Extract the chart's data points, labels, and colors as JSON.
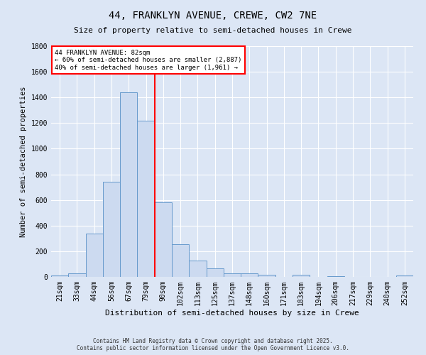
{
  "title_line1": "44, FRANKLYN AVENUE, CREWE, CW2 7NE",
  "title_line2": "Size of property relative to semi-detached houses in Crewe",
  "xlabel": "Distribution of semi-detached houses by size in Crewe",
  "ylabel": "Number of semi-detached properties",
  "bin_labels": [
    "21sqm",
    "33sqm",
    "44sqm",
    "56sqm",
    "67sqm",
    "79sqm",
    "90sqm",
    "102sqm",
    "113sqm",
    "125sqm",
    "137sqm",
    "148sqm",
    "160sqm",
    "171sqm",
    "183sqm",
    "194sqm",
    "206sqm",
    "217sqm",
    "229sqm",
    "240sqm",
    "252sqm"
  ],
  "bin_values": [
    10,
    25,
    340,
    740,
    1440,
    1220,
    580,
    255,
    125,
    65,
    30,
    25,
    15,
    0,
    15,
    0,
    5,
    0,
    0,
    0,
    10
  ],
  "bar_color": "#ccdaf0",
  "bar_edge_color": "#6699cc",
  "vline_color": "red",
  "vline_position": 5.5,
  "annotation_text": "44 FRANKLYN AVENUE: 82sqm\n← 60% of semi-detached houses are smaller (2,887)\n40% of semi-detached houses are larger (1,961) →",
  "ylim": [
    0,
    1800
  ],
  "yticks": [
    0,
    200,
    400,
    600,
    800,
    1000,
    1200,
    1400,
    1600,
    1800
  ],
  "footnote_line1": "Contains HM Land Registry data © Crown copyright and database right 2025.",
  "footnote_line2": "Contains public sector information licensed under the Open Government Licence v3.0.",
  "background_color": "#dce6f5",
  "plot_background_color": "#dce6f5",
  "grid_color": "#ffffff",
  "title1_fontsize": 10,
  "title2_fontsize": 8,
  "tick_fontsize": 7,
  "ylabel_fontsize": 7.5,
  "xlabel_fontsize": 8,
  "annot_fontsize": 6.5,
  "footnote_fontsize": 5.5
}
